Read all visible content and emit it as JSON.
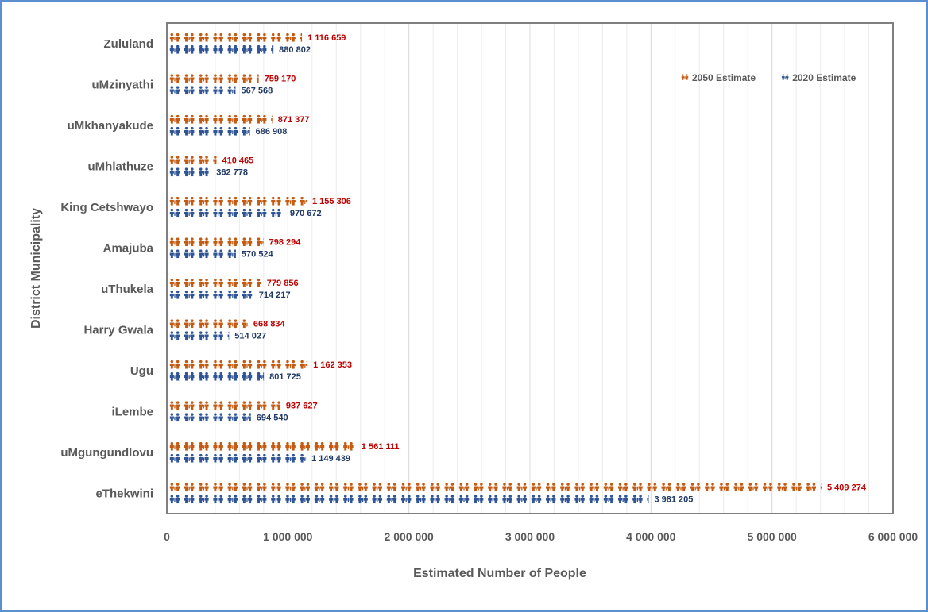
{
  "chart_data": {
    "type": "bar",
    "orientation": "horizontal",
    "title": "",
    "xlabel": "Estimated Number of People",
    "ylabel": "District Municipality",
    "xlim": [
      0,
      6000000
    ],
    "xticks": [
      0,
      1000000,
      2000000,
      3000000,
      4000000,
      5000000,
      6000000
    ],
    "xtick_labels": [
      "0",
      "1 000 000",
      "2 000 000",
      "3 000 000",
      "4 000 000",
      "5 000 000",
      "6 000 000"
    ],
    "grid": "vertical",
    "legend_position": "top-right",
    "categories": [
      "Zululand",
      "uMzinyathi",
      "uMkhanyakude",
      "uMhlathuze",
      "King Cetshwayo",
      "Amajuba",
      "uThukela",
      "Harry Gwala",
      "Ugu",
      "iLembe",
      "uMgungundlovu",
      "eThekwini"
    ],
    "series": [
      {
        "name": "2050 Estimate",
        "color": "#c55a11",
        "label_color": "#c00000",
        "values": [
          1116659,
          759170,
          871377,
          410465,
          1155306,
          798294,
          779856,
          668834,
          1162353,
          937627,
          1561111,
          5409274
        ],
        "labels": [
          "1 116 659",
          "759 170",
          "871 377",
          "410 465",
          "1 155 306",
          "798 294",
          "779 856",
          "668 834",
          "1 162 353",
          "937 627",
          "1 561 111",
          "5 409 274"
        ]
      },
      {
        "name": "2020 Estimate",
        "color": "#2f5597",
        "label_color": "#1f3864",
        "values": [
          880802,
          567568,
          686908,
          362778,
          970672,
          570524,
          714217,
          514027,
          801725,
          694540,
          1149439,
          3981205
        ],
        "labels": [
          "880 802",
          "567 568",
          "686 908",
          "362 778",
          "970 672",
          "570 524",
          "714 217",
          "514 027",
          "801 725",
          "694 540",
          "1 149 439",
          "3 981 205"
        ]
      }
    ]
  }
}
